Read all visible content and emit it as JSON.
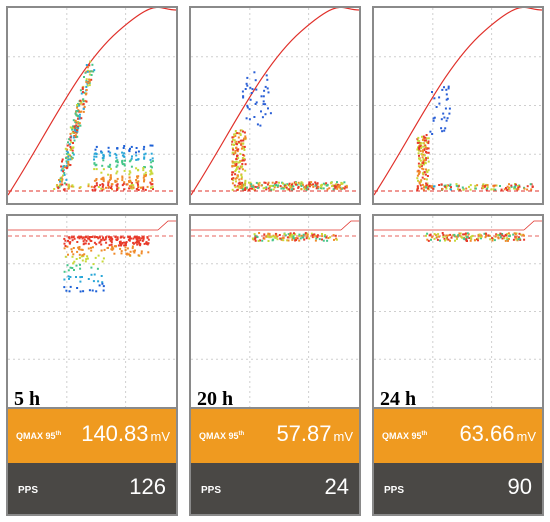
{
  "panels": [
    {
      "time_label": "5 h",
      "qmax_label": "QMAX 95",
      "qmax_sup": "th",
      "qmax_value": "140.83",
      "qmax_unit": "mV",
      "pps_label": "PPS",
      "pps_value": "126"
    },
    {
      "time_label": "20 h",
      "qmax_label": "QMAX 95",
      "qmax_sup": "th",
      "qmax_value": "57.87",
      "qmax_unit": "mV",
      "pps_label": "PPS",
      "pps_value": "24"
    },
    {
      "time_label": "24 h",
      "qmax_label": "QMAX 95",
      "qmax_sup": "th",
      "qmax_value": "63.66",
      "qmax_unit": "mV",
      "pps_label": "PPS",
      "pps_value": "90"
    }
  ],
  "colors": {
    "accent_orange": "#ef9a20",
    "dark_bar": "#4a4845",
    "curve_red": "#e0302a",
    "grid": "#cfcfcf"
  },
  "chart_data": [
    {
      "type": "scatter",
      "title": "5 h",
      "qmax_95th_mV": 140.83,
      "pps": 126,
      "grid": true
    },
    {
      "type": "scatter",
      "title": "20 h",
      "qmax_95th_mV": 57.87,
      "pps": 24,
      "grid": true
    },
    {
      "type": "scatter",
      "title": "24 h",
      "qmax_95th_mV": 63.66,
      "pps": 90,
      "grid": true
    }
  ]
}
